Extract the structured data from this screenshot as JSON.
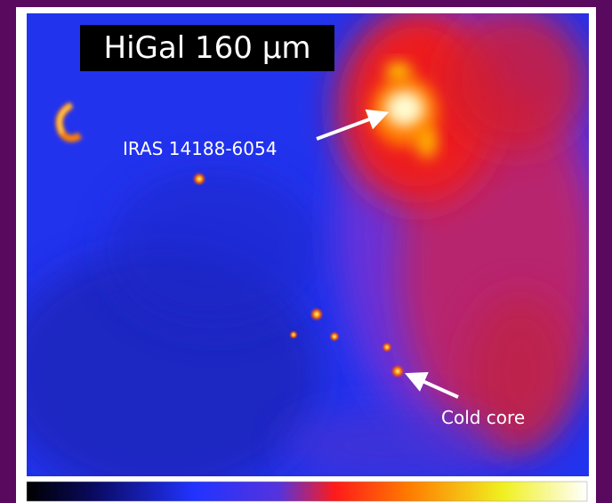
{
  "image": {
    "title": "HiGal 160 μm",
    "annotations": [
      {
        "label": "IRAS 14188-6054"
      },
      {
        "label": "Cold core"
      }
    ]
  }
}
